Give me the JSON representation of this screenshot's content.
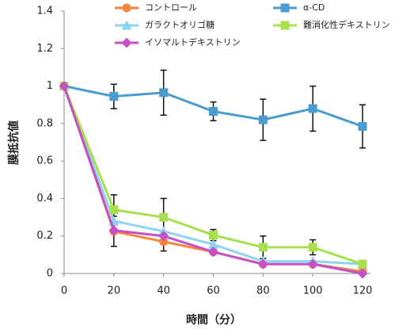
{
  "chart_data": {
    "type": "line",
    "x_label": "時間（分）",
    "y_label": "膜抵抗値",
    "x": [
      0,
      20,
      40,
      60,
      80,
      100,
      120
    ],
    "xlim": [
      0,
      120
    ],
    "xticks": [
      0,
      20,
      40,
      60,
      80,
      100,
      120
    ],
    "ylim": [
      0,
      1.4
    ],
    "yticks": [
      0,
      0.2,
      0.4,
      0.6,
      0.8,
      1,
      1.2,
      1.4
    ],
    "series": [
      {
        "name": "コントロール",
        "color": "#f4873b",
        "marker": "circle",
        "values": [
          1,
          0.225,
          0.17,
          0.115,
          0.05,
          0.05,
          0.01
        ],
        "errors": [
          null,
          0.08,
          0.05,
          null,
          null,
          null,
          null
        ]
      },
      {
        "name": "α-CD",
        "color": "#4a9bd0",
        "marker": "square",
        "values": [
          1,
          0.945,
          0.965,
          0.865,
          0.82,
          0.88,
          0.785
        ],
        "errors": [
          null,
          0.065,
          0.12,
          0.05,
          0.11,
          0.12,
          0.115
        ]
      },
      {
        "name": "ガラクトオリゴ糖",
        "color": "#8dd3f2",
        "marker": "triangle",
        "values": [
          1,
          0.28,
          0.225,
          0.155,
          0.065,
          0.065,
          0.05
        ],
        "errors": [
          null,
          null,
          null,
          null,
          null,
          null,
          null
        ]
      },
      {
        "name": "難消化性デキストリン",
        "color": "#a6e04e",
        "marker": "square",
        "values": [
          1,
          0.34,
          0.3,
          0.205,
          0.14,
          0.14,
          0.05
        ],
        "errors": [
          null,
          0.08,
          0.1,
          0.03,
          0.06,
          0.04,
          null
        ]
      },
      {
        "name": "イソマルトデキストリン",
        "color": "#c54fc7",
        "marker": "diamond",
        "values": [
          1,
          0.23,
          0.2,
          0.115,
          0.05,
          0.05,
          0.0
        ],
        "errors": [
          null,
          null,
          null,
          null,
          null,
          null,
          null
        ]
      }
    ]
  }
}
